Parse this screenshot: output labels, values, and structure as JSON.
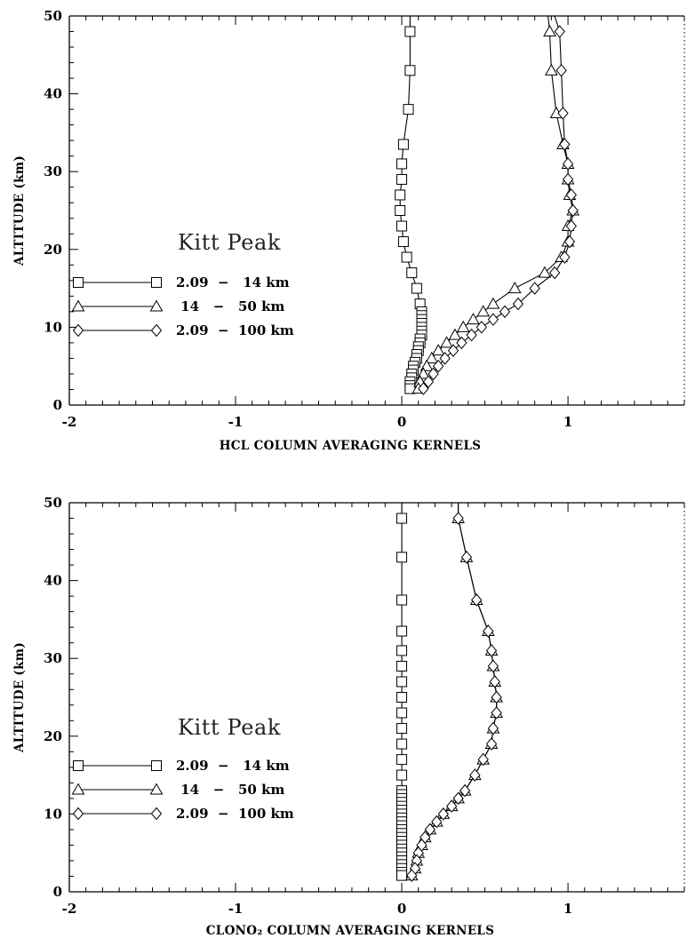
{
  "chart_data": [
    {
      "type": "line",
      "annotation": "Kitt Peak",
      "xlabel": "HCL COLUMN AVERAGING KERNELS",
      "ylabel": "ALTITUDE (km)",
      "xlim": [
        -2,
        1.7
      ],
      "ylim": [
        0,
        50
      ],
      "x_ticks": [
        "-2",
        "-1",
        "0",
        "1"
      ],
      "y_ticks": [
        "0",
        "10",
        "20",
        "30",
        "40",
        "50"
      ],
      "legend": {
        "placement": "left",
        "entries": [
          "2.09  −   14 km",
          " 14   −   50 km",
          "2.09  −  100 km"
        ]
      },
      "series": [
        {
          "name": "2.09  −   14 km",
          "marker": "square",
          "points": [
            [
              0.05,
              50
            ],
            [
              0.05,
              48
            ],
            [
              0.05,
              43
            ],
            [
              0.04,
              38
            ],
            [
              0.01,
              33.5
            ],
            [
              0.0,
              31
            ],
            [
              0.0,
              29
            ],
            [
              -0.01,
              27
            ],
            [
              -0.01,
              25
            ],
            [
              0.0,
              23
            ],
            [
              0.01,
              21
            ],
            [
              0.03,
              19
            ],
            [
              0.06,
              17
            ],
            [
              0.09,
              15
            ],
            [
              0.11,
              13
            ],
            [
              0.12,
              12
            ],
            [
              0.12,
              11.5
            ],
            [
              0.12,
              11
            ],
            [
              0.12,
              10.5
            ],
            [
              0.12,
              10
            ],
            [
              0.12,
              9.5
            ],
            [
              0.12,
              9
            ],
            [
              0.11,
              8.5
            ],
            [
              0.11,
              8
            ],
            [
              0.1,
              7.5
            ],
            [
              0.1,
              7
            ],
            [
              0.09,
              6.5
            ],
            [
              0.09,
              6
            ],
            [
              0.08,
              5.5
            ],
            [
              0.07,
              5
            ],
            [
              0.07,
              4.5
            ],
            [
              0.06,
              4
            ],
            [
              0.06,
              3.5
            ],
            [
              0.05,
              3
            ],
            [
              0.05,
              2.5
            ],
            [
              0.05,
              2.1
            ]
          ]
        },
        {
          "name": " 14   −   50 km",
          "marker": "triangle",
          "points": [
            [
              0.88,
              50
            ],
            [
              0.89,
              48
            ],
            [
              0.9,
              43
            ],
            [
              0.93,
              37.5
            ],
            [
              0.97,
              33.5
            ],
            [
              1.0,
              31
            ],
            [
              1.0,
              29
            ],
            [
              1.01,
              27
            ],
            [
              1.03,
              25
            ],
            [
              1.0,
              23
            ],
            [
              1.0,
              21
            ],
            [
              0.96,
              19
            ],
            [
              0.86,
              17
            ],
            [
              0.68,
              15
            ],
            [
              0.55,
              13
            ],
            [
              0.49,
              12
            ],
            [
              0.43,
              11
            ],
            [
              0.37,
              10
            ],
            [
              0.32,
              9
            ],
            [
              0.27,
              8
            ],
            [
              0.22,
              7
            ],
            [
              0.18,
              6
            ],
            [
              0.15,
              5
            ],
            [
              0.13,
              4
            ],
            [
              0.11,
              3
            ],
            [
              0.1,
              2.1
            ]
          ]
        },
        {
          "name": "2.09  −  100 km",
          "marker": "diamond",
          "points": [
            [
              0.92,
              50
            ],
            [
              0.95,
              48
            ],
            [
              0.96,
              43
            ],
            [
              0.97,
              37.5
            ],
            [
              0.98,
              33.5
            ],
            [
              1.0,
              31
            ],
            [
              1.0,
              29
            ],
            [
              1.02,
              27
            ],
            [
              1.03,
              25
            ],
            [
              1.02,
              23
            ],
            [
              1.01,
              21
            ],
            [
              0.98,
              19
            ],
            [
              0.92,
              17
            ],
            [
              0.8,
              15
            ],
            [
              0.7,
              13
            ],
            [
              0.62,
              12
            ],
            [
              0.55,
              11
            ],
            [
              0.48,
              10
            ],
            [
              0.42,
              9
            ],
            [
              0.36,
              8
            ],
            [
              0.31,
              7
            ],
            [
              0.26,
              6
            ],
            [
              0.22,
              5
            ],
            [
              0.19,
              4
            ],
            [
              0.16,
              3
            ],
            [
              0.13,
              2.1
            ]
          ]
        }
      ]
    },
    {
      "type": "line",
      "annotation": "Kitt Peak",
      "xlabel": "CLONO₂ COLUMN AVERAGING KERNELS",
      "ylabel": "ALTITUDE (km)",
      "xlim": [
        -2,
        1.7
      ],
      "ylim": [
        0,
        50
      ],
      "x_ticks": [
        "-2",
        "-1",
        "0",
        "1"
      ],
      "y_ticks": [
        "0",
        "10",
        "20",
        "30",
        "40",
        "50"
      ],
      "legend": {
        "placement": "left",
        "entries": [
          "2.09  −   14 km",
          " 14   −   50 km",
          "2.09  −  100 km"
        ]
      },
      "series": [
        {
          "name": "2.09  −   14 km",
          "marker": "square",
          "points": [
            [
              0.0,
              50
            ],
            [
              0.0,
              48
            ],
            [
              0.0,
              43
            ],
            [
              0.0,
              37.5
            ],
            [
              0.0,
              33.5
            ],
            [
              0.0,
              31
            ],
            [
              0.0,
              29
            ],
            [
              0.0,
              27
            ],
            [
              0.0,
              25
            ],
            [
              0.0,
              23
            ],
            [
              0.0,
              21
            ],
            [
              0.0,
              19
            ],
            [
              0.0,
              17
            ],
            [
              0.0,
              15
            ],
            [
              0.0,
              13
            ],
            [
              0.0,
              12.5
            ],
            [
              0.0,
              12
            ],
            [
              0.0,
              11.5
            ],
            [
              0.0,
              11
            ],
            [
              0.0,
              10.5
            ],
            [
              0.0,
              10
            ],
            [
              0.0,
              9.5
            ],
            [
              0.0,
              9
            ],
            [
              0.0,
              8.5
            ],
            [
              0.0,
              8
            ],
            [
              0.0,
              7.5
            ],
            [
              0.0,
              7
            ],
            [
              0.0,
              6.5
            ],
            [
              0.0,
              6
            ],
            [
              0.0,
              5.5
            ],
            [
              0.0,
              5
            ],
            [
              0.0,
              4.5
            ],
            [
              0.0,
              4
            ],
            [
              0.0,
              3.5
            ],
            [
              0.0,
              3
            ],
            [
              0.0,
              2.5
            ],
            [
              0.0,
              2.1
            ]
          ]
        },
        {
          "name": " 14   −   50 km",
          "marker": "triangle",
          "points": [
            [
              0.34,
              50
            ],
            [
              0.34,
              48
            ],
            [
              0.39,
              43
            ],
            [
              0.45,
              37.5
            ],
            [
              0.52,
              33.5
            ],
            [
              0.54,
              31
            ],
            [
              0.55,
              29
            ],
            [
              0.56,
              27
            ],
            [
              0.57,
              25
            ],
            [
              0.57,
              23
            ],
            [
              0.55,
              21
            ],
            [
              0.54,
              19
            ],
            [
              0.49,
              17
            ],
            [
              0.44,
              15
            ],
            [
              0.38,
              13
            ],
            [
              0.34,
              12
            ],
            [
              0.3,
              11
            ],
            [
              0.25,
              10
            ],
            [
              0.21,
              9
            ],
            [
              0.17,
              8
            ],
            [
              0.14,
              7
            ],
            [
              0.12,
              6
            ],
            [
              0.1,
              5
            ],
            [
              0.09,
              4
            ],
            [
              0.08,
              3
            ],
            [
              0.06,
              2.1
            ]
          ]
        },
        {
          "name": "2.09  −  100 km",
          "marker": "diamond",
          "points": [
            [
              0.34,
              50
            ],
            [
              0.34,
              48
            ],
            [
              0.39,
              43
            ],
            [
              0.45,
              37.5
            ],
            [
              0.52,
              33.5
            ],
            [
              0.54,
              31
            ],
            [
              0.55,
              29
            ],
            [
              0.56,
              27
            ],
            [
              0.57,
              25
            ],
            [
              0.57,
              23
            ],
            [
              0.55,
              21
            ],
            [
              0.54,
              19
            ],
            [
              0.49,
              17
            ],
            [
              0.44,
              15
            ],
            [
              0.38,
              13
            ],
            [
              0.34,
              12
            ],
            [
              0.3,
              11
            ],
            [
              0.25,
              10
            ],
            [
              0.21,
              9
            ],
            [
              0.17,
              8
            ],
            [
              0.14,
              7
            ],
            [
              0.12,
              6
            ],
            [
              0.1,
              5
            ],
            [
              0.09,
              4
            ],
            [
              0.08,
              3
            ],
            [
              0.06,
              2.1
            ]
          ]
        }
      ]
    }
  ]
}
